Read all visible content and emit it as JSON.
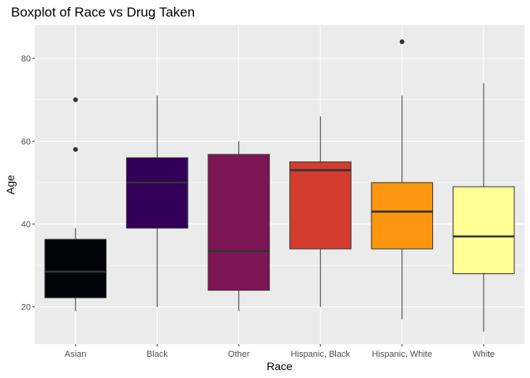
{
  "chart_data": {
    "type": "boxplot",
    "title": "Boxplot of Race vs Drug Taken",
    "xlabel": "Race",
    "ylabel": "Age",
    "ylim": [
      11,
      88
    ],
    "yticks": [
      20,
      40,
      60,
      80
    ],
    "grid": true,
    "legend": "none",
    "categories": [
      "Asian",
      "Black",
      "Other",
      "Hispanic, Black",
      "Hispanic, White",
      "White"
    ],
    "boxes": [
      {
        "category": "Asian",
        "whisker_low": 19,
        "q1": 22.2,
        "median": 28.5,
        "q3": 36.3,
        "whisker_high": 39,
        "outliers": [
          58,
          70
        ],
        "color": "#03030a"
      },
      {
        "category": "Black",
        "whisker_low": 20,
        "q1": 39,
        "median": 50,
        "q3": 56,
        "whisker_high": 71,
        "outliers": [],
        "color": "#320058"
      },
      {
        "category": "Other",
        "whisker_low": 19,
        "q1": 24,
        "median": 33.5,
        "q3": 56.8,
        "whisker_high": 60,
        "outliers": [],
        "color": "#7d1654"
      },
      {
        "category": "Hispanic, Black",
        "whisker_low": 20,
        "q1": 34,
        "median": 53,
        "q3": 55,
        "whisker_high": 66,
        "outliers": [],
        "color": "#d53c30"
      },
      {
        "category": "Hispanic, White",
        "whisker_low": 17,
        "q1": 34,
        "median": 43,
        "q3": 50,
        "whisker_high": 71,
        "outliers": [
          84
        ],
        "color": "#fb960e"
      },
      {
        "category": "White",
        "whisker_low": 14,
        "q1": 28,
        "median": 37,
        "q3": 49,
        "whisker_high": 74,
        "outliers": [],
        "color": "#ffff94"
      }
    ]
  }
}
